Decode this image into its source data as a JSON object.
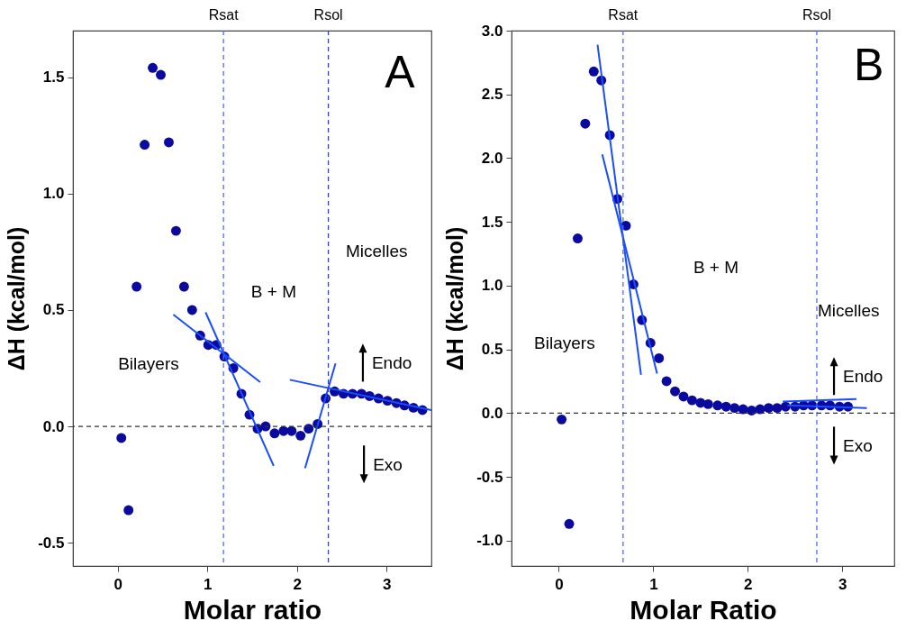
{
  "chart_data": [
    {
      "type": "scatter",
      "xlabel": "Molar ratio",
      "ylabel": "ΔH (kcal/mol)",
      "xlim": [
        -0.5,
        3.5
      ],
      "ylim": [
        -0.6,
        1.7
      ],
      "xticks": [
        0,
        1,
        2,
        3
      ],
      "yticks": [
        {
          "value": -0.5,
          "label": "-0.5"
        },
        {
          "value": 0,
          "label": "0.0"
        },
        {
          "value": 0.5,
          "label": "0.5"
        },
        {
          "value": 1,
          "label": "1.0"
        },
        {
          "value": 1.5,
          "label": "1.5"
        }
      ],
      "grid": false,
      "series": [
        {
          "marker": "circle",
          "color": "#0a0a9e",
          "x": [
            0.04,
            0.12,
            0.21,
            0.3,
            0.39,
            0.48,
            0.57,
            0.65,
            0.74,
            0.83,
            0.92,
            1.01,
            1.1,
            1.19,
            1.29,
            1.38,
            1.47,
            1.56,
            1.65,
            1.75,
            1.85,
            1.94,
            2.04,
            2.13,
            2.23,
            2.32,
            2.42,
            2.52,
            2.62,
            2.72,
            2.81,
            2.91,
            3.01,
            3.11,
            3.2,
            3.3,
            3.4
          ],
          "values": [
            -0.05,
            -0.36,
            0.6,
            1.21,
            1.54,
            1.51,
            1.22,
            0.84,
            0.6,
            0.5,
            0.39,
            0.35,
            0.35,
            0.3,
            0.25,
            0.14,
            0.05,
            -0.01,
            0.0,
            -0.03,
            -0.02,
            -0.02,
            -0.04,
            -0.01,
            0.01,
            0.12,
            0.15,
            0.14,
            0.14,
            0.14,
            0.13,
            0.12,
            0.11,
            0.1,
            0.09,
            0.08,
            0.07
          ]
        },
        {
          "type": "line",
          "color": "#1a4dff",
          "x": [
            0.62,
            1.59
          ],
          "values": [
            0.48,
            0.19
          ]
        },
        {
          "type": "line",
          "color": "#1a4dff",
          "x": [
            0.98,
            1.74
          ],
          "values": [
            0.49,
            -0.17
          ]
        },
        {
          "type": "line",
          "color": "#1a4dff",
          "x": [
            2.09,
            2.43
          ],
          "values": [
            -0.18,
            0.27
          ]
        },
        {
          "type": "line",
          "color": "#1a4dff",
          "x": [
            1.92,
            3.5
          ],
          "values": [
            0.2,
            0.07
          ]
        }
      ],
      "ref_lines": [
        {
          "axis": "x",
          "value": 1.18,
          "label": "Rsat",
          "color": "#4d6bff",
          "line_style": "dashed"
        },
        {
          "axis": "x",
          "value": 2.35,
          "label": "Rsol",
          "color": "#2a3fd0",
          "line_style": "dashed"
        },
        {
          "axis": "y",
          "value": 0,
          "color": "#333333",
          "line_style": "dashed"
        }
      ],
      "annotations": [
        "A",
        "Bilayers",
        "B + M",
        "Micelles",
        "Endo",
        "Exo"
      ]
    },
    {
      "type": "scatter",
      "xlabel": "Molar Ratio",
      "ylabel": "ΔH (kcal/mol)",
      "xlim": [
        -0.5,
        3.55
      ],
      "ylim": [
        -1.2,
        3.0
      ],
      "xticks": [
        0,
        1,
        2,
        3
      ],
      "yticks": [
        {
          "value": -1,
          "label": "-1.0"
        },
        {
          "value": -0.5,
          "label": "-0.5"
        },
        {
          "value": 0,
          "label": "0.0"
        },
        {
          "value": 0.5,
          "label": "0.5"
        },
        {
          "value": 1,
          "label": "1.0"
        },
        {
          "value": 1.5,
          "label": "1.5"
        },
        {
          "value": 2,
          "label": "2.0"
        },
        {
          "value": 2.5,
          "label": "2.5"
        },
        {
          "value": 3,
          "label": "3.0"
        }
      ],
      "grid": false,
      "series": [
        {
          "marker": "circle",
          "color": "#0a0a9e",
          "x": [
            0.03,
            0.11,
            0.2,
            0.28,
            0.37,
            0.45,
            0.54,
            0.62,
            0.71,
            0.79,
            0.88,
            0.97,
            1.06,
            1.14,
            1.23,
            1.32,
            1.41,
            1.5,
            1.58,
            1.68,
            1.77,
            1.86,
            1.95,
            2.04,
            2.13,
            2.22,
            2.31,
            2.4,
            2.5,
            2.59,
            2.68,
            2.78,
            2.87,
            2.97,
            3.06
          ],
          "values": [
            -0.05,
            -0.87,
            1.37,
            2.27,
            2.68,
            2.61,
            2.18,
            1.68,
            1.47,
            1.01,
            0.73,
            0.55,
            0.43,
            0.25,
            0.17,
            0.13,
            0.1,
            0.08,
            0.07,
            0.06,
            0.05,
            0.04,
            0.03,
            0.02,
            0.03,
            0.04,
            0.04,
            0.05,
            0.05,
            0.06,
            0.06,
            0.06,
            0.06,
            0.05,
            0.05
          ]
        },
        {
          "type": "line",
          "color": "#1a4dff",
          "x": [
            0.41,
            0.87
          ],
          "values": [
            2.89,
            0.3
          ]
        },
        {
          "type": "line",
          "color": "#1a4dff",
          "x": [
            0.46,
            1.04
          ],
          "values": [
            2.03,
            0.31
          ]
        },
        {
          "type": "line",
          "color": "#1a4dff",
          "x": [
            2.37,
            3.15
          ],
          "values": [
            0.09,
            0.11
          ]
        },
        {
          "type": "line",
          "color": "#1a4dff",
          "x": [
            2.42,
            3.26
          ],
          "values": [
            0.06,
            0.04
          ]
        }
      ],
      "ref_lines": [
        {
          "axis": "x",
          "value": 0.68,
          "label": "Rsat",
          "color": "#4d6bff",
          "line_style": "dashed"
        },
        {
          "axis": "x",
          "value": 2.73,
          "label": "Rsol",
          "color": "#4d6bff",
          "line_style": "dashed"
        },
        {
          "axis": "y",
          "value": 0,
          "color": "#333333",
          "line_style": "dashed"
        }
      ],
      "annotations": [
        "B",
        "Bilayers",
        "B + M",
        "Micelles",
        "Endo",
        "Exo"
      ]
    }
  ]
}
